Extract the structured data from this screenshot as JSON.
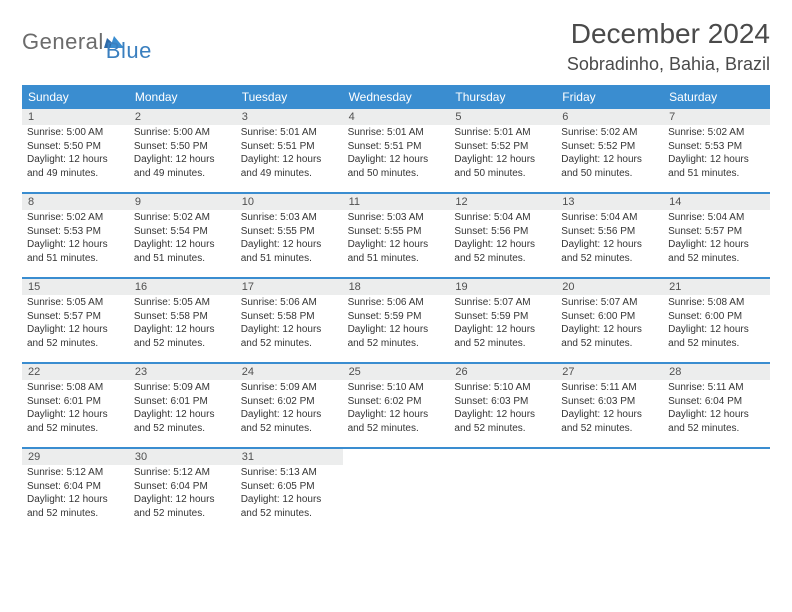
{
  "brand": {
    "part1": "General",
    "part2": "Blue"
  },
  "title": {
    "month": "December 2024",
    "location": "Sobradinho, Bahia, Brazil"
  },
  "colors": {
    "header_bg": "#3a8dd0",
    "header_text": "#ffffff",
    "daynum_bg": "#eceded",
    "week_border": "#3a8dd0",
    "brand_gray": "#6b6b6b",
    "brand_blue": "#3a7fbf",
    "text": "#353535"
  },
  "weekdays": [
    "Sunday",
    "Monday",
    "Tuesday",
    "Wednesday",
    "Thursday",
    "Friday",
    "Saturday"
  ],
  "labels": {
    "sunrise": "Sunrise:",
    "sunset": "Sunset:",
    "daylight": "Daylight:"
  },
  "weeks": [
    [
      {
        "n": "1",
        "sr": "5:00 AM",
        "ss": "5:50 PM",
        "dl": "12 hours and 49 minutes."
      },
      {
        "n": "2",
        "sr": "5:00 AM",
        "ss": "5:50 PM",
        "dl": "12 hours and 49 minutes."
      },
      {
        "n": "3",
        "sr": "5:01 AM",
        "ss": "5:51 PM",
        "dl": "12 hours and 49 minutes."
      },
      {
        "n": "4",
        "sr": "5:01 AM",
        "ss": "5:51 PM",
        "dl": "12 hours and 50 minutes."
      },
      {
        "n": "5",
        "sr": "5:01 AM",
        "ss": "5:52 PM",
        "dl": "12 hours and 50 minutes."
      },
      {
        "n": "6",
        "sr": "5:02 AM",
        "ss": "5:52 PM",
        "dl": "12 hours and 50 minutes."
      },
      {
        "n": "7",
        "sr": "5:02 AM",
        "ss": "5:53 PM",
        "dl": "12 hours and 51 minutes."
      }
    ],
    [
      {
        "n": "8",
        "sr": "5:02 AM",
        "ss": "5:53 PM",
        "dl": "12 hours and 51 minutes."
      },
      {
        "n": "9",
        "sr": "5:02 AM",
        "ss": "5:54 PM",
        "dl": "12 hours and 51 minutes."
      },
      {
        "n": "10",
        "sr": "5:03 AM",
        "ss": "5:55 PM",
        "dl": "12 hours and 51 minutes."
      },
      {
        "n": "11",
        "sr": "5:03 AM",
        "ss": "5:55 PM",
        "dl": "12 hours and 51 minutes."
      },
      {
        "n": "12",
        "sr": "5:04 AM",
        "ss": "5:56 PM",
        "dl": "12 hours and 52 minutes."
      },
      {
        "n": "13",
        "sr": "5:04 AM",
        "ss": "5:56 PM",
        "dl": "12 hours and 52 minutes."
      },
      {
        "n": "14",
        "sr": "5:04 AM",
        "ss": "5:57 PM",
        "dl": "12 hours and 52 minutes."
      }
    ],
    [
      {
        "n": "15",
        "sr": "5:05 AM",
        "ss": "5:57 PM",
        "dl": "12 hours and 52 minutes."
      },
      {
        "n": "16",
        "sr": "5:05 AM",
        "ss": "5:58 PM",
        "dl": "12 hours and 52 minutes."
      },
      {
        "n": "17",
        "sr": "5:06 AM",
        "ss": "5:58 PM",
        "dl": "12 hours and 52 minutes."
      },
      {
        "n": "18",
        "sr": "5:06 AM",
        "ss": "5:59 PM",
        "dl": "12 hours and 52 minutes."
      },
      {
        "n": "19",
        "sr": "5:07 AM",
        "ss": "5:59 PM",
        "dl": "12 hours and 52 minutes."
      },
      {
        "n": "20",
        "sr": "5:07 AM",
        "ss": "6:00 PM",
        "dl": "12 hours and 52 minutes."
      },
      {
        "n": "21",
        "sr": "5:08 AM",
        "ss": "6:00 PM",
        "dl": "12 hours and 52 minutes."
      }
    ],
    [
      {
        "n": "22",
        "sr": "5:08 AM",
        "ss": "6:01 PM",
        "dl": "12 hours and 52 minutes."
      },
      {
        "n": "23",
        "sr": "5:09 AM",
        "ss": "6:01 PM",
        "dl": "12 hours and 52 minutes."
      },
      {
        "n": "24",
        "sr": "5:09 AM",
        "ss": "6:02 PM",
        "dl": "12 hours and 52 minutes."
      },
      {
        "n": "25",
        "sr": "5:10 AM",
        "ss": "6:02 PM",
        "dl": "12 hours and 52 minutes."
      },
      {
        "n": "26",
        "sr": "5:10 AM",
        "ss": "6:03 PM",
        "dl": "12 hours and 52 minutes."
      },
      {
        "n": "27",
        "sr": "5:11 AM",
        "ss": "6:03 PM",
        "dl": "12 hours and 52 minutes."
      },
      {
        "n": "28",
        "sr": "5:11 AM",
        "ss": "6:04 PM",
        "dl": "12 hours and 52 minutes."
      }
    ],
    [
      {
        "n": "29",
        "sr": "5:12 AM",
        "ss": "6:04 PM",
        "dl": "12 hours and 52 minutes."
      },
      {
        "n": "30",
        "sr": "5:12 AM",
        "ss": "6:04 PM",
        "dl": "12 hours and 52 minutes."
      },
      {
        "n": "31",
        "sr": "5:13 AM",
        "ss": "6:05 PM",
        "dl": "12 hours and 52 minutes."
      },
      null,
      null,
      null,
      null
    ]
  ]
}
